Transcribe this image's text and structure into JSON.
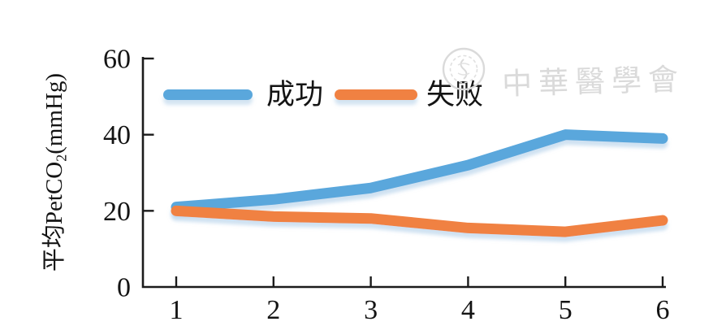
{
  "chart_data": {
    "type": "line",
    "x": [
      1,
      2,
      3,
      4,
      5,
      6
    ],
    "x_ticks": [
      "1",
      "2",
      "3",
      "4",
      "5",
      "6"
    ],
    "y_ticks": [
      0,
      20,
      40,
      60
    ],
    "ylim": [
      0,
      60
    ],
    "grid": false,
    "legend_position": "top-inside",
    "ylabel_prefix": "平均PetCO",
    "ylabel_sub": "2",
    "ylabel_suffix": "(mmHg)",
    "series": [
      {
        "name": "成功",
        "color": "#5AA7DC",
        "values": [
          21,
          23,
          26,
          32,
          40,
          39
        ]
      },
      {
        "name": "失败",
        "color": "#F08142",
        "values": [
          20,
          18.5,
          18,
          15.5,
          14.5,
          17.5
        ]
      }
    ],
    "shadow_color": "#a8c9e6",
    "axis_color": "#1b1b1b"
  },
  "watermark": {
    "text": "中華醫學會"
  }
}
